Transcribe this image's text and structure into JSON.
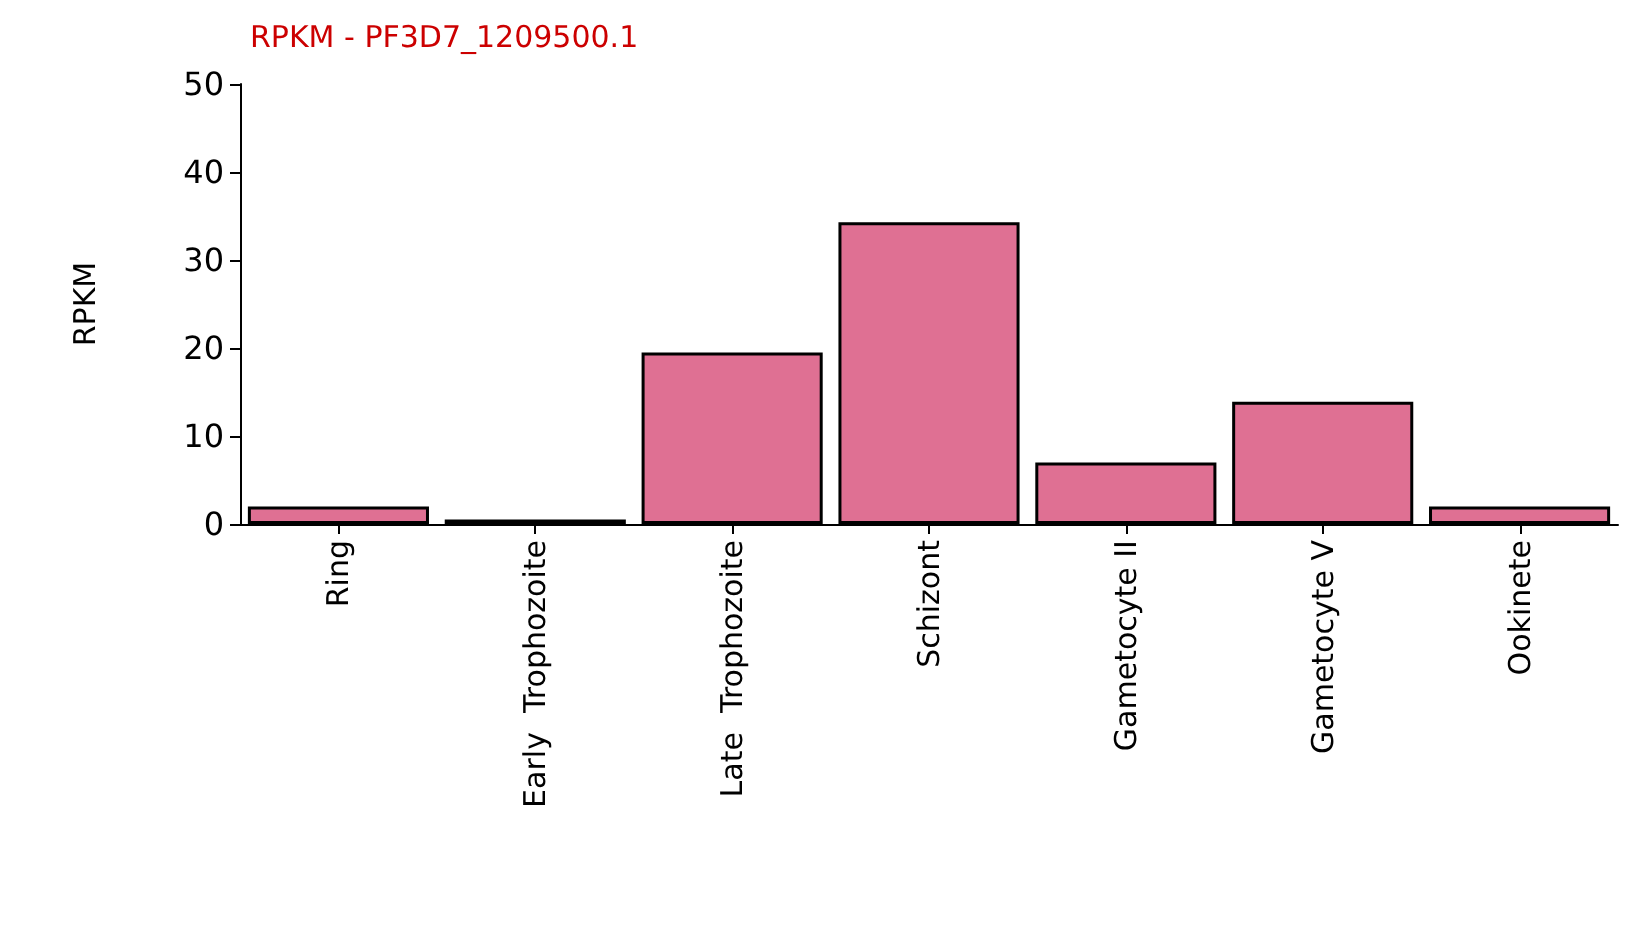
{
  "chart_data": {
    "type": "bar",
    "title": "RPKM - PF3D7_1209500.1",
    "ylabel": "RPKM",
    "categories": [
      "Ring",
      "Early  Trophozoite",
      "Late  Trophozoite",
      "Schizont",
      "Gametocyte II",
      "Gametocyte V",
      "Ookinete"
    ],
    "values": [
      2,
      0.5,
      19.5,
      34.3,
      7,
      13.9,
      2
    ],
    "color": "#df7093",
    "ylim": [
      0,
      50
    ],
    "yticks": [
      0,
      10,
      20,
      30,
      40,
      50
    ],
    "grid": false
  }
}
